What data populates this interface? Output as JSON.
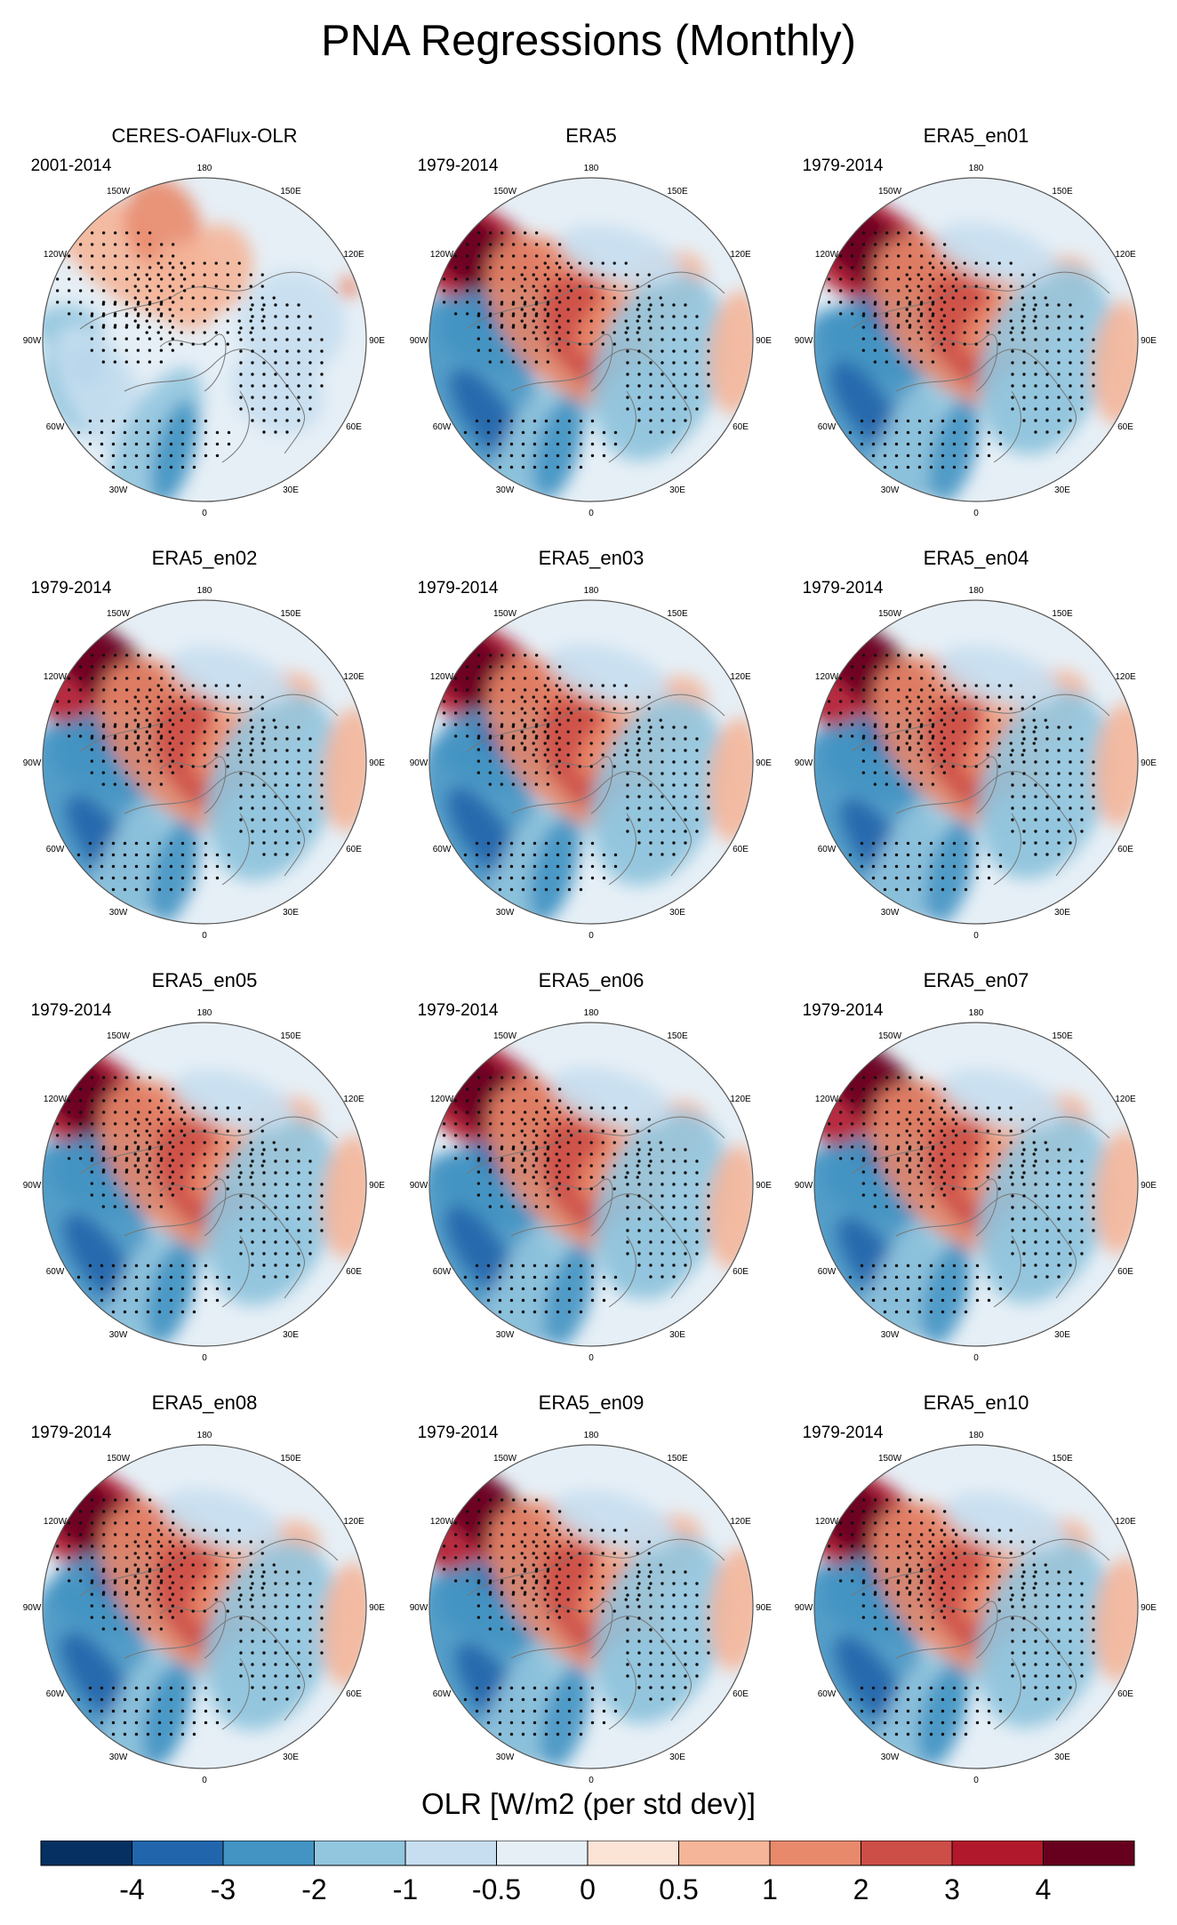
{
  "figure": {
    "title": "PNA Regressions (Monthly)"
  },
  "chart_data": {
    "type": "polar-contour-map",
    "projection": "north polar stereographic",
    "longitude_labels": [
      "180",
      "150E",
      "120E",
      "90E",
      "60E",
      "30E",
      "0",
      "30W",
      "60W",
      "90W",
      "120W",
      "150W"
    ],
    "colorbar": {
      "title": "OLR [W/m2 (per std dev)]",
      "levels": [
        "-4",
        "-3",
        "-2",
        "-1",
        "-0.5",
        "0",
        "0.5",
        "1",
        "2",
        "3",
        "4"
      ],
      "colors": [
        "#053061",
        "#2166ac",
        "#4393c3",
        "#92c5de",
        "#c7def0",
        "#e6eff6",
        "#fbe3d6",
        "#f4b599",
        "#e9896b",
        "#cd4e47",
        "#b2182b",
        "#67001f"
      ]
    },
    "panels": [
      {
        "title": "CERES-OAFlux-OLR",
        "period": "2001-2014"
      },
      {
        "title": "ERA5",
        "period": "1979-2014"
      },
      {
        "title": "ERA5_en01",
        "period": "1979-2014"
      },
      {
        "title": "ERA5_en02",
        "period": "1979-2014"
      },
      {
        "title": "ERA5_en03",
        "period": "1979-2014"
      },
      {
        "title": "ERA5_en04",
        "period": "1979-2014"
      },
      {
        "title": "ERA5_en05",
        "period": "1979-2014"
      },
      {
        "title": "ERA5_en06",
        "period": "1979-2014"
      },
      {
        "title": "ERA5_en07",
        "period": "1979-2014"
      },
      {
        "title": "ERA5_en08",
        "period": "1979-2014"
      },
      {
        "title": "ERA5_en09",
        "period": "1979-2014"
      },
      {
        "title": "ERA5_en10",
        "period": "1979-2014"
      }
    ]
  }
}
